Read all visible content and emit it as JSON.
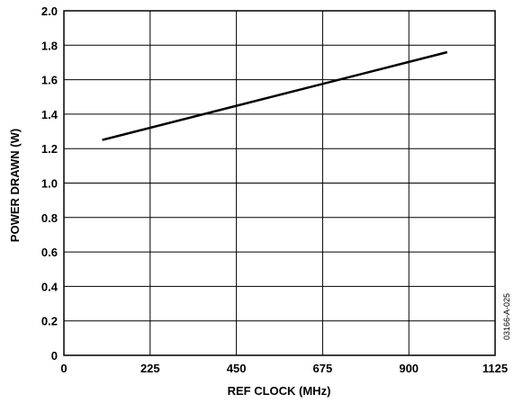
{
  "chart_data": {
    "type": "line",
    "title": "",
    "xlabel": "REF CLOCK (MHz)",
    "ylabel": "POWER DRAWN (W)",
    "xlim": [
      0,
      1125
    ],
    "ylim": [
      0,
      2.0
    ],
    "x_ticks": [
      "0",
      "225",
      "450",
      "675",
      "900",
      "1125"
    ],
    "y_ticks": [
      "0",
      "0.2",
      "0.4",
      "0.6",
      "0.8",
      "1.0",
      "1.2",
      "1.4",
      "1.6",
      "1.8",
      "2.0"
    ],
    "grid": true,
    "series": [
      {
        "x": [
          100,
          1000
        ],
        "y": [
          1.25,
          1.76
        ]
      }
    ],
    "line_color": "#000000"
  },
  "figure_id": "03166-A-025"
}
